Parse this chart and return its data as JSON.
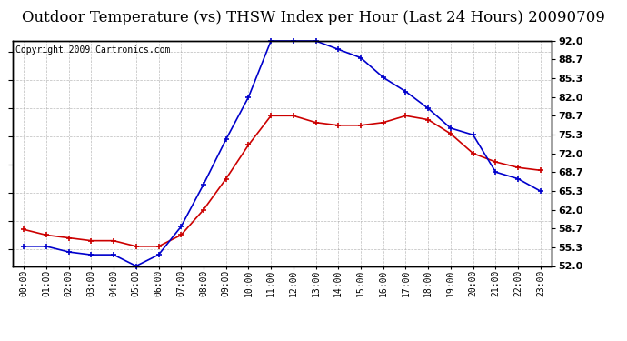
{
  "title": "Outdoor Temperature (vs) THSW Index per Hour (Last 24 Hours) 20090709",
  "copyright": "Copyright 2009 Cartronics.com",
  "hours": [
    "00:00",
    "01:00",
    "02:00",
    "03:00",
    "04:00",
    "05:00",
    "06:00",
    "07:00",
    "08:00",
    "09:00",
    "10:00",
    "11:00",
    "12:00",
    "13:00",
    "14:00",
    "15:00",
    "16:00",
    "17:00",
    "18:00",
    "19:00",
    "20:00",
    "21:00",
    "22:00",
    "23:00"
  ],
  "temp": [
    58.5,
    57.5,
    57.0,
    56.5,
    56.5,
    55.5,
    55.5,
    57.5,
    62.0,
    67.5,
    73.5,
    78.7,
    78.7,
    77.5,
    77.0,
    77.0,
    77.5,
    78.7,
    78.0,
    75.5,
    72.0,
    70.5,
    69.5,
    69.0
  ],
  "thsw": [
    55.5,
    55.5,
    54.5,
    54.0,
    54.0,
    52.0,
    54.0,
    59.0,
    66.5,
    74.5,
    82.0,
    92.0,
    92.0,
    92.0,
    90.5,
    89.0,
    85.5,
    83.0,
    80.0,
    76.5,
    75.3,
    68.7,
    67.5,
    65.3
  ],
  "temp_color": "#cc0000",
  "thsw_color": "#0000cc",
  "ylim": [
    52.0,
    92.0
  ],
  "yticks": [
    52.0,
    55.3,
    58.7,
    62.0,
    65.3,
    68.7,
    72.0,
    75.3,
    78.7,
    82.0,
    85.3,
    88.7,
    92.0
  ],
  "ytick_labels": [
    "52.0",
    "55.3",
    "58.7",
    "62.0",
    "65.3",
    "68.7",
    "72.0",
    "75.3",
    "78.7",
    "82.0",
    "85.3",
    "88.7",
    "92.0"
  ],
  "bg_color": "#ffffff",
  "plot_bg": "#ffffff",
  "grid_color": "#aaaaaa",
  "title_fontsize": 12,
  "copyright_fontsize": 7,
  "marker": "+",
  "marker_size": 5,
  "linewidth": 1.2
}
